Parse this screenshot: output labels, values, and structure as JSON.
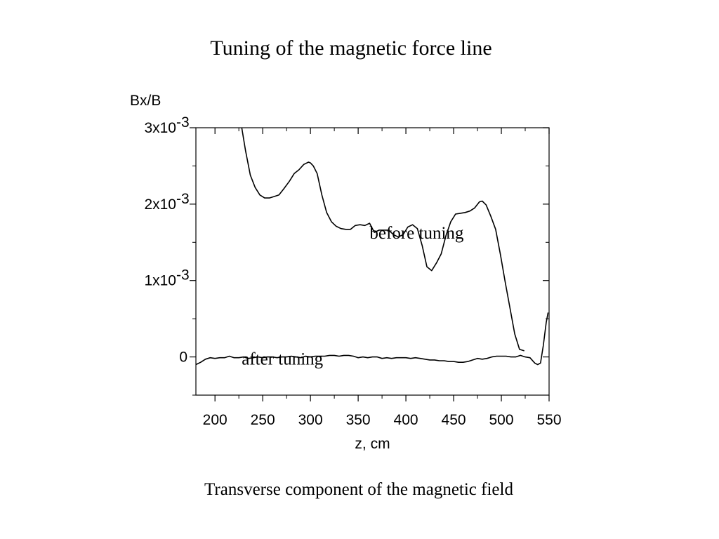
{
  "slide": {
    "title": "Tuning of the magnetic force line",
    "caption": "Transverse component of the magnetic field"
  },
  "chart_data": {
    "type": "line",
    "xlabel": "z, cm",
    "ylabel": "Bx/B",
    "xlim": [
      180,
      550
    ],
    "ylim": [
      -0.0005,
      0.003
    ],
    "x_ticks": [
      200,
      250,
      300,
      350,
      400,
      450,
      500,
      550
    ],
    "x_tick_labels": [
      "200",
      "250",
      "300",
      "350",
      "400",
      "450",
      "500",
      "550"
    ],
    "y_ticks": [
      0,
      0.001,
      0.002,
      0.003
    ],
    "y_tick_labels": [
      {
        "base": "0",
        "exp": ""
      },
      {
        "base": "1x10",
        "exp": "-3"
      },
      {
        "base": "2x10",
        "exp": "-3"
      },
      {
        "base": "3x10",
        "exp": "-3"
      }
    ],
    "grid": false,
    "annotations": [
      {
        "text": "before tuning",
        "x": 362,
        "y": 0.00155
      },
      {
        "text": "after tuning",
        "x": 228,
        "y": -0.0001
      }
    ],
    "series": [
      {
        "name": "before tuning",
        "color": "#000000",
        "x": [
          228,
          232,
          237,
          242,
          247,
          252,
          257,
          262,
          267,
          272,
          278,
          283,
          288,
          293,
          298,
          300,
          303,
          307,
          312,
          317,
          322,
          327,
          332,
          337,
          342,
          347,
          352,
          357,
          362,
          367,
          372,
          377,
          382,
          387,
          392,
          397,
          402,
          407,
          412,
          417,
          422,
          427,
          432,
          437,
          442,
          447,
          452,
          457,
          462,
          467,
          472,
          477,
          480,
          484,
          489,
          494,
          499,
          504,
          509,
          514,
          519,
          524
        ],
        "y": [
          0.003,
          0.0027,
          0.00238,
          0.00222,
          0.00212,
          0.00208,
          0.00208,
          0.0021,
          0.00212,
          0.0022,
          0.0023,
          0.0024,
          0.00245,
          0.00252,
          0.00255,
          0.00254,
          0.0025,
          0.0024,
          0.00212,
          0.00189,
          0.00177,
          0.00171,
          0.00168,
          0.00167,
          0.00167,
          0.00172,
          0.00173,
          0.00172,
          0.00175,
          0.00163,
          0.00166,
          0.00166,
          0.00166,
          0.0016,
          0.00157,
          0.0016,
          0.0017,
          0.00173,
          0.00168,
          0.00146,
          0.00118,
          0.00113,
          0.00123,
          0.00135,
          0.00159,
          0.00177,
          0.00187,
          0.00188,
          0.00189,
          0.00191,
          0.00195,
          0.00203,
          0.00204,
          0.00199,
          0.00184,
          0.00167,
          0.00134,
          0.00098,
          0.00064,
          0.0003,
          0.0001,
          8e-05
        ]
      },
      {
        "name": "after tuning",
        "color": "#000000",
        "x": [
          180,
          185,
          190,
          195,
          200,
          205,
          210,
          215,
          220,
          225,
          230,
          235,
          240,
          245,
          250,
          255,
          260,
          265,
          270,
          275,
          280,
          285,
          290,
          295,
          300,
          305,
          310,
          315,
          320,
          325,
          330,
          335,
          340,
          345,
          350,
          355,
          360,
          365,
          370,
          375,
          380,
          385,
          390,
          395,
          400,
          405,
          410,
          415,
          420,
          425,
          430,
          435,
          440,
          445,
          450,
          455,
          460,
          465,
          470,
          475,
          480,
          485,
          490,
          495,
          500,
          505,
          510,
          515,
          520,
          525,
          530,
          535,
          538,
          541,
          544,
          547,
          549
        ],
        "y": [
          -0.0001,
          -7e-05,
          -3e-05,
          -1e-05,
          -2e-05,
          -1e-05,
          -1e-05,
          1e-05,
          -1e-05,
          -1e-05,
          0.0,
          -2e-05,
          -1e-05,
          0.0,
          -1e-05,
          0.0,
          0.0,
          -1e-05,
          0.0,
          0.0,
          1e-05,
          0.0,
          -1e-05,
          1e-05,
          0.0,
          1e-05,
          1e-05,
          1e-05,
          2e-05,
          2e-05,
          1e-05,
          2e-05,
          2e-05,
          1e-05,
          -1e-05,
          0.0,
          -1e-05,
          0.0,
          0.0,
          -2e-05,
          -1e-05,
          -2e-05,
          -1e-05,
          -1e-05,
          -1e-05,
          -2e-05,
          -1e-05,
          -2e-05,
          -3e-05,
          -4e-05,
          -4e-05,
          -5e-05,
          -5e-05,
          -6e-05,
          -6e-05,
          -7e-05,
          -7e-05,
          -6e-05,
          -4e-05,
          -2e-05,
          -3e-05,
          -2e-05,
          0.0,
          1e-05,
          1e-05,
          1e-05,
          0.0,
          0.0,
          2e-05,
          0.0,
          -1e-05,
          -8e-05,
          -0.0001,
          -8e-05,
          0.00015,
          0.00045,
          0.00058
        ]
      }
    ]
  }
}
